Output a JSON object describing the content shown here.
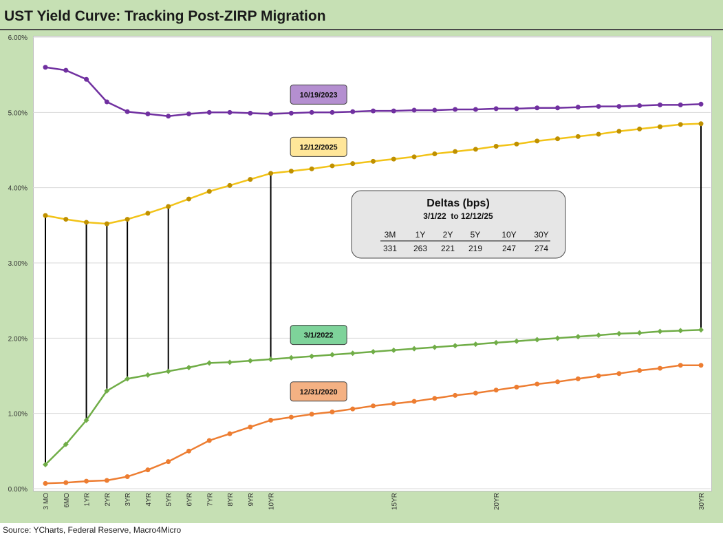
{
  "title": "UST Yield Curve: Tracking Post-ZIRP Migration",
  "source": "Source: YCharts, Federal Reserve, Macro4Micro",
  "deltas_box": {
    "title": "Deltas (bps)",
    "subtitle": "3/1/22  to 12/12/25",
    "headers": [
      "3M",
      "1Y",
      "2Y",
      "5Y",
      "10Y",
      "30Y"
    ],
    "values": [
      "331",
      "263",
      "221",
      "219",
      "247",
      "274"
    ]
  },
  "chart_data": {
    "type": "line",
    "title": "UST Yield Curve: Tracking Post-ZIRP Migration",
    "xlabel": "",
    "ylabel": "",
    "ylim": [
      0,
      6
    ],
    "y_format": "percent_2dp",
    "yticks": [
      "0.00%",
      "1.00%",
      "2.00%",
      "3.00%",
      "4.00%",
      "5.00%",
      "6.00%"
    ],
    "x_labels": [
      "3 MO",
      "6MO",
      "1YR",
      "2YR",
      "3YR",
      "4YR",
      "5YR",
      "6YR",
      "7YR",
      "8YR",
      "9YR",
      "10YR",
      "",
      "",
      "",
      "",
      "",
      "15YR",
      "",
      "",
      "",
      "",
      "20YR",
      "",
      "",
      "",
      "",
      "",
      "",
      "",
      "",
      "",
      "30YR"
    ],
    "grid": "horizontal",
    "series": [
      {
        "name": "10/19/2023",
        "color": "#7030a0",
        "label_fill": "#b48fd0",
        "marker": "circle",
        "values": [
          5.6,
          5.56,
          5.44,
          5.14,
          5.01,
          4.98,
          4.95,
          4.98,
          5.0,
          5.0,
          4.99,
          4.98,
          4.99,
          5.0,
          5.0,
          5.01,
          5.02,
          5.02,
          5.03,
          5.03,
          5.04,
          5.04,
          5.05,
          5.05,
          5.06,
          5.06,
          5.07,
          5.08,
          5.08,
          5.09,
          5.1,
          5.1,
          5.11
        ]
      },
      {
        "name": "12/12/2025",
        "color": "#f2c318",
        "marker_color": "#bf9000",
        "label_fill": "#ffe699",
        "marker": "circle",
        "values": [
          3.63,
          3.58,
          3.54,
          3.52,
          3.58,
          3.66,
          3.75,
          3.85,
          3.95,
          4.03,
          4.11,
          4.19,
          4.22,
          4.25,
          4.29,
          4.32,
          4.35,
          4.38,
          4.41,
          4.45,
          4.48,
          4.51,
          4.55,
          4.58,
          4.62,
          4.65,
          4.68,
          4.71,
          4.75,
          4.78,
          4.81,
          4.84,
          4.85
        ]
      },
      {
        "name": "3/1/2022",
        "color": "#70ad47",
        "label_fill": "#7ed39a",
        "marker": "diamond",
        "values": [
          0.32,
          0.59,
          0.91,
          1.3,
          1.46,
          1.51,
          1.56,
          1.61,
          1.67,
          1.68,
          1.7,
          1.72,
          1.74,
          1.76,
          1.78,
          1.8,
          1.82,
          1.84,
          1.86,
          1.88,
          1.9,
          1.92,
          1.94,
          1.96,
          1.98,
          2.0,
          2.02,
          2.04,
          2.06,
          2.07,
          2.09,
          2.1,
          2.11
        ]
      },
      {
        "name": "12/31/2020",
        "color": "#ed7d31",
        "label_fill": "#f4b183",
        "marker": "circle",
        "values": [
          0.07,
          0.08,
          0.1,
          0.11,
          0.16,
          0.25,
          0.36,
          0.5,
          0.64,
          0.73,
          0.82,
          0.91,
          0.95,
          0.99,
          1.02,
          1.06,
          1.1,
          1.13,
          1.16,
          1.2,
          1.24,
          1.27,
          1.31,
          1.35,
          1.39,
          1.42,
          1.46,
          1.5,
          1.53,
          1.57,
          1.6,
          1.64,
          1.64
        ]
      }
    ],
    "delta_lines": [
      {
        "x_index": 0,
        "from_series": "3/1/2022",
        "to_series": "12/12/2025"
      },
      {
        "x_index": 2,
        "from_series": "3/1/2022",
        "to_series": "12/12/2025"
      },
      {
        "x_index": 3,
        "from_series": "3/1/2022",
        "to_series": "12/12/2025"
      },
      {
        "x_index": 4,
        "from_series": "3/1/2022",
        "to_series": "12/12/2025"
      },
      {
        "x_index": 6,
        "from_series": "3/1/2022",
        "to_series": "12/12/2025"
      },
      {
        "x_index": 11,
        "from_series": "3/1/2022",
        "to_series": "12/12/2025"
      },
      {
        "x_index": 32,
        "from_series": "3/1/2022",
        "to_series": "12/12/2025"
      }
    ]
  }
}
